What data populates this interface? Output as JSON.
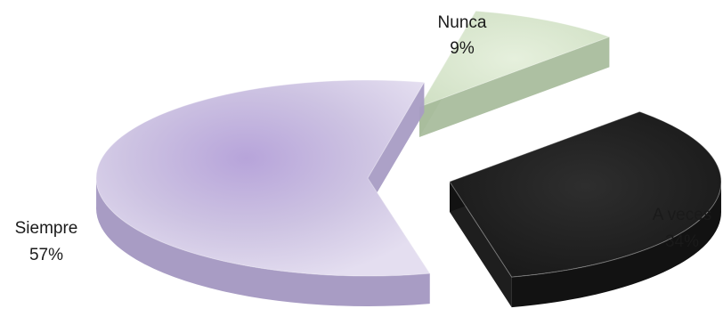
{
  "chart_data": {
    "type": "pie",
    "style": "3d-exploded",
    "title": "",
    "slices": [
      {
        "label": "Nunca",
        "value": 9,
        "display": "9%",
        "color": "#d9e8cf"
      },
      {
        "label": "A veces",
        "value": 34,
        "display": "34%",
        "color": "#2b2b2b"
      },
      {
        "label": "Siempre",
        "value": 57,
        "display": "57%",
        "color": "#cfc6e3"
      }
    ],
    "legend": "none"
  }
}
